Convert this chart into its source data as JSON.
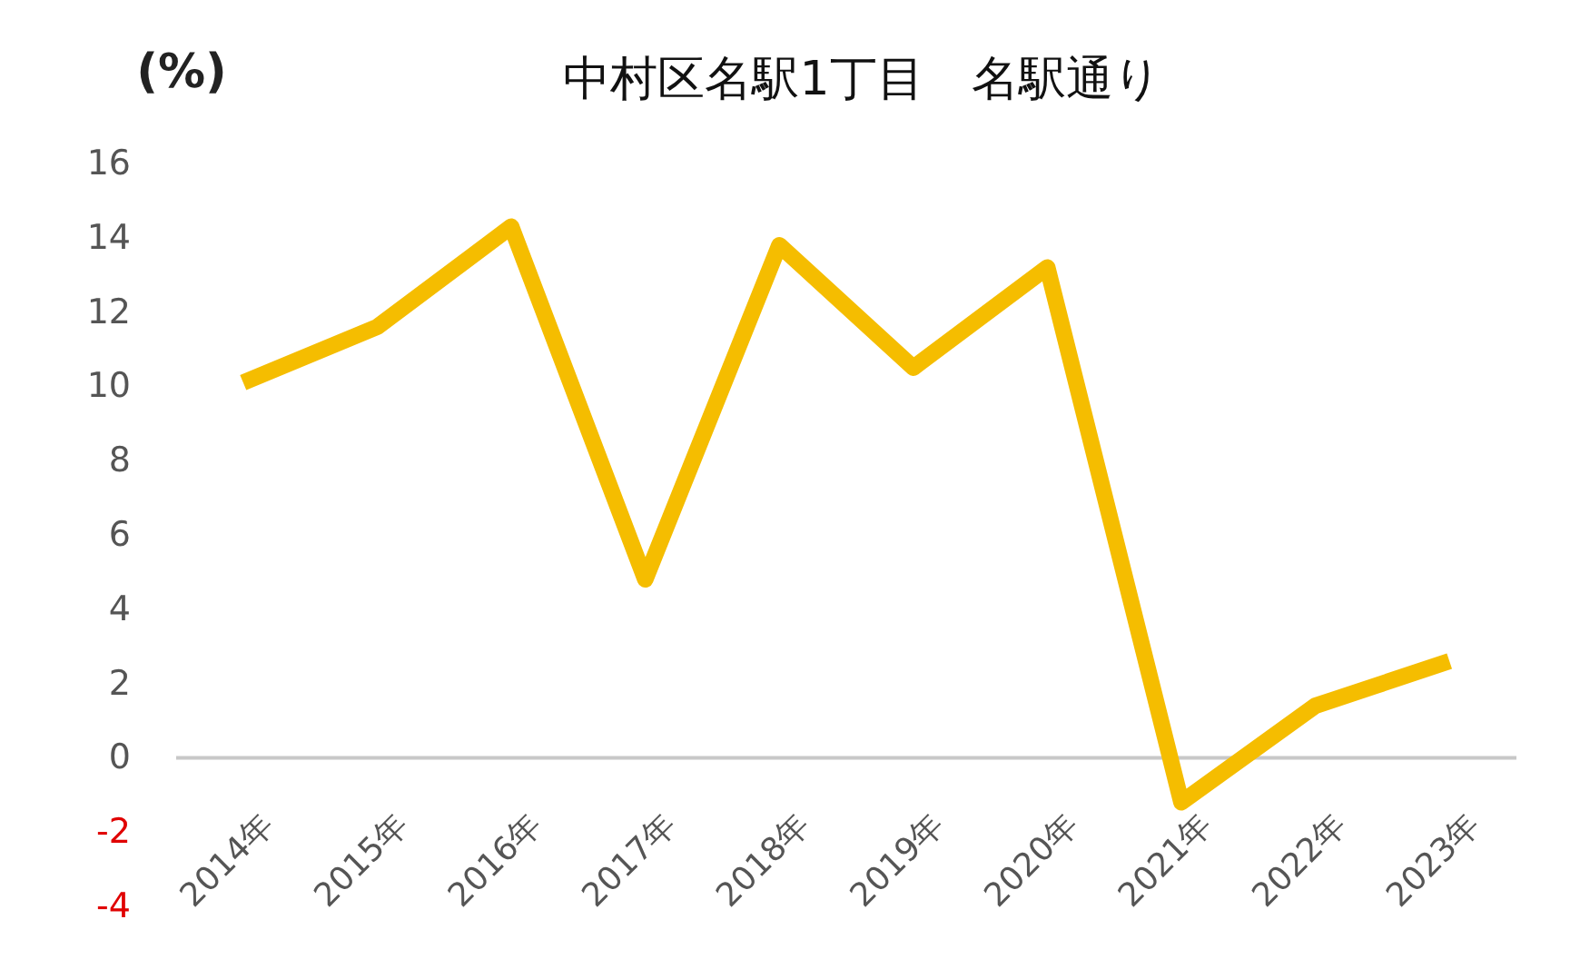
{
  "chart_data": {
    "type": "line",
    "title": "中村区名駅1丁目　名駅通り",
    "ylabel": "(%)",
    "categories": [
      "2014年",
      "2015年",
      "2016年",
      "2017年",
      "2018年",
      "2019年",
      "2020年",
      "2021年",
      "2022年",
      "2023年"
    ],
    "series": [
      {
        "color": "#f5bd00",
        "values": [
          10.1,
          11.6,
          14.3,
          4.8,
          13.8,
          10.5,
          13.2,
          -1.2,
          1.4,
          2.6
        ]
      }
    ],
    "ylim": [
      -4,
      16
    ],
    "yticks": [
      -4,
      -2,
      0,
      2,
      4,
      6,
      8,
      10,
      12,
      14,
      16
    ],
    "grid": false,
    "marker": "none",
    "line_style": "solid"
  }
}
